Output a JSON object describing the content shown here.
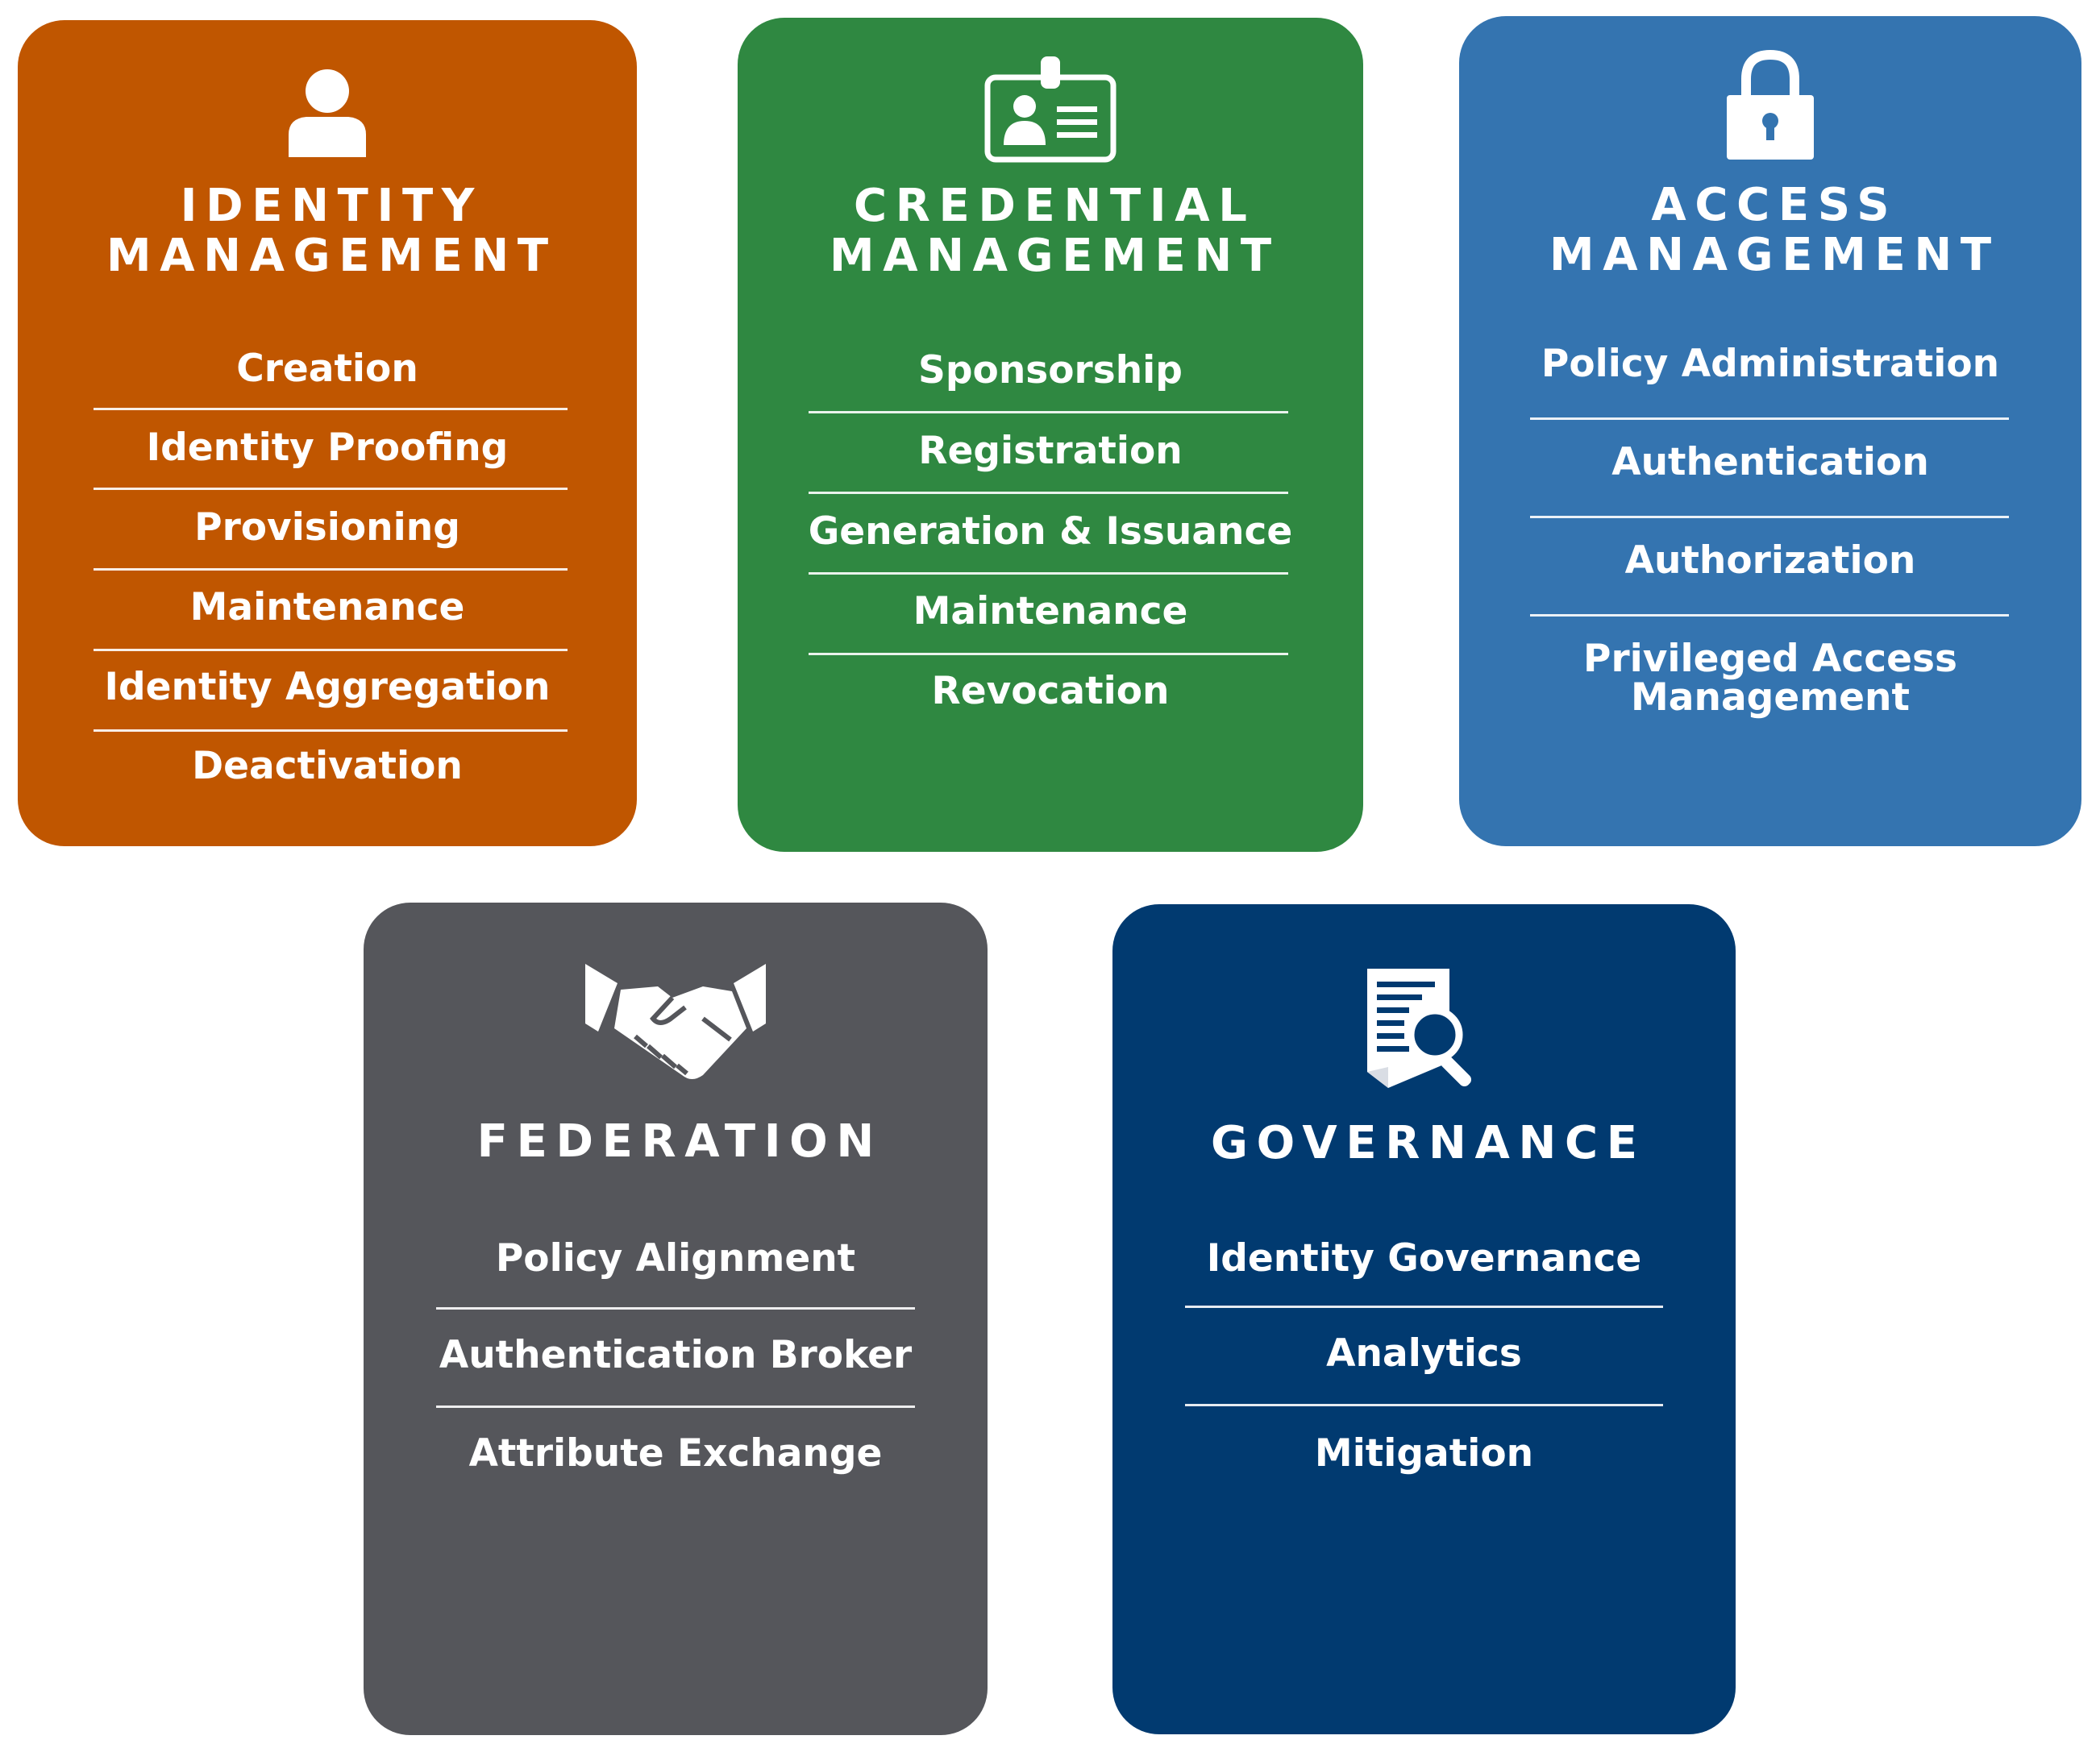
{
  "cards": [
    {
      "id": "identity",
      "color": "#C05600",
      "icon": "person-icon",
      "title": [
        "IDENTITY",
        "MANAGEMENT"
      ],
      "items": [
        "Creation",
        "Identity Proofing",
        "Provisioning",
        "Maintenance",
        "Identity Aggregation",
        "Deactivation"
      ]
    },
    {
      "id": "credential",
      "color": "#2F8841",
      "icon": "id-badge-icon",
      "title": [
        "CREDENTIAL",
        "MANAGEMENT"
      ],
      "items": [
        "Sponsorship",
        "Registration",
        "Generation & Issuance",
        "Maintenance",
        "Revocation"
      ]
    },
    {
      "id": "access",
      "color": "#3474B0",
      "icon": "padlock-icon",
      "title": [
        "ACCESS",
        "MANAGEMENT"
      ],
      "items": [
        "Policy Administration",
        "Authentication",
        "Authorization",
        "Privileged Access Management"
      ]
    },
    {
      "id": "federation",
      "color": "#55565B",
      "icon": "handshake-icon",
      "title": [
        "FEDERATION"
      ],
      "items": [
        "Policy Alignment",
        "Authentication Broker",
        "Attribute Exchange"
      ]
    },
    {
      "id": "governance",
      "color": "#013A70",
      "icon": "document-search-icon",
      "title": [
        "GOVERNANCE"
      ],
      "items": [
        "Identity Governance",
        "Analytics",
        "Mitigation"
      ]
    }
  ]
}
